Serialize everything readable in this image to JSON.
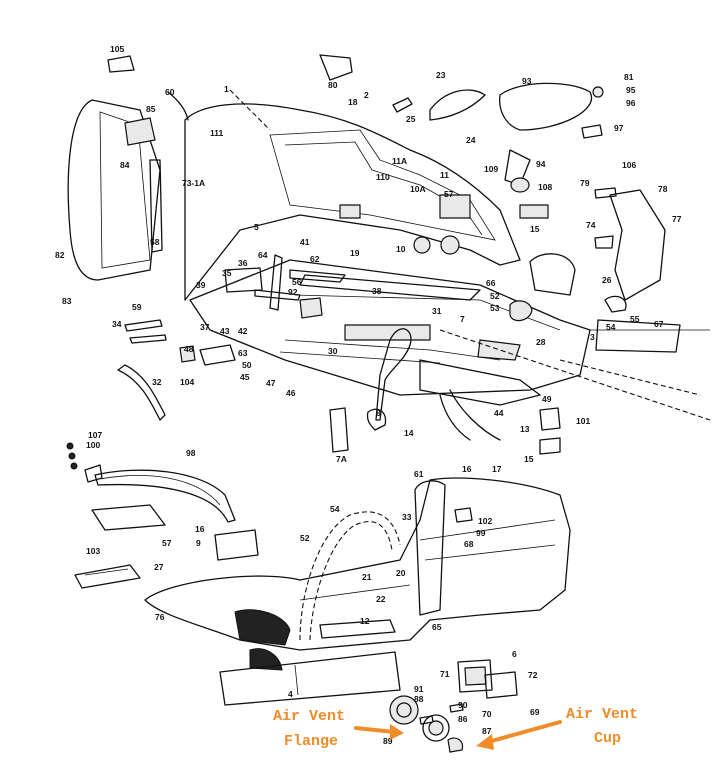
{
  "callouts": {
    "flange_line1": "Air Vent",
    "flange_line2": "Flange",
    "cup_line1": "Air Vent",
    "cup_line2": "Cup"
  },
  "callout_color": "#f08c28",
  "part_numbers": {
    "p105": "105",
    "p80": "80",
    "p18": "18",
    "p1": "1",
    "p2": "2",
    "p60": "60",
    "p85": "85",
    "p111": "111",
    "p84": "84",
    "p73": "73-1A",
    "p82": "82",
    "p83": "83",
    "p58a": "58",
    "p59": "59",
    "p23": "23",
    "p25": "25",
    "p24": "24",
    "p93": "93",
    "p81": "81",
    "p95": "95",
    "p96": "96",
    "p97": "97",
    "p94": "94",
    "p106": "106",
    "p109": "109",
    "p108": "108",
    "p11a": "11A",
    "p11": "11",
    "p110": "110",
    "p10a": "10A",
    "p57a": "57",
    "p79": "79",
    "p78": "78",
    "p77": "77",
    "p74": "74",
    "p5": "5",
    "p41": "41",
    "p64": "64",
    "p36": "36",
    "p35": "35",
    "p62": "62",
    "p19": "19",
    "p10": "10",
    "p15a": "15",
    "p56": "56",
    "p39": "39",
    "p92": "92",
    "p38": "38",
    "p66": "66",
    "p26": "26",
    "p52a": "52",
    "p53": "53",
    "p55": "55",
    "p54a": "54",
    "p67": "67",
    "p3": "3",
    "p34": "34",
    "p37": "37",
    "p43": "43",
    "p42": "42",
    "p31": "31",
    "p7": "7",
    "p48": "48",
    "p63": "63",
    "p50": "50",
    "p45": "45",
    "p30": "30",
    "p28": "28",
    "p104": "104",
    "p32": "32",
    "p47": "47",
    "p46": "46",
    "p49": "49",
    "p44": "44",
    "p101": "101",
    "p13": "13",
    "p14": "14",
    "p8": "8",
    "p7a": "7A",
    "p15b": "15",
    "p107": "107",
    "p100": "100",
    "p98": "98",
    "p61": "61",
    "p16a": "16",
    "p17": "17",
    "p54b": "54",
    "p33": "33",
    "p102": "102",
    "p99": "99",
    "p68": "68",
    "p16b": "16",
    "p9": "9",
    "p52b": "52",
    "p103": "103",
    "p57b": "57",
    "p27": "27",
    "p20": "20",
    "p21": "21",
    "p22": "22",
    "p76": "76",
    "p12": "12",
    "p65": "65",
    "p6": "6",
    "p71": "71",
    "p72": "72",
    "p4": "4",
    "p91": "91",
    "p88": "88",
    "p90": "90",
    "p70": "70",
    "p69": "69",
    "p86": "86",
    "p89": "89",
    "p87": "87"
  }
}
